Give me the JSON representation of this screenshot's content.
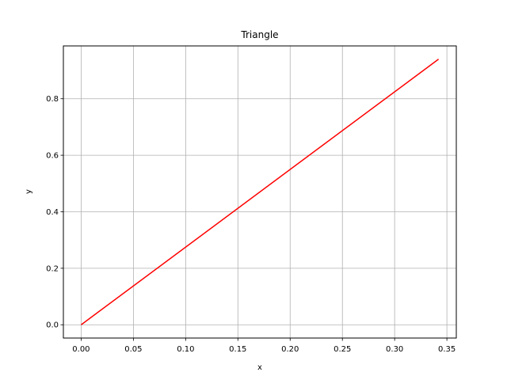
{
  "chart_data": {
    "type": "line",
    "title": "Triangle",
    "xlabel": "x",
    "ylabel": "y",
    "xlim": [
      -0.017,
      0.359
    ],
    "ylim": [
      -0.047,
      0.987
    ],
    "grid": true,
    "x_ticks": [
      0.0,
      0.05,
      0.1,
      0.15,
      0.2,
      0.25,
      0.3,
      0.35
    ],
    "x_tick_labels": [
      "0.00",
      "0.05",
      "0.10",
      "0.15",
      "0.20",
      "0.25",
      "0.30",
      "0.35"
    ],
    "y_ticks": [
      0.0,
      0.2,
      0.4,
      0.6,
      0.8
    ],
    "y_tick_labels": [
      "0.0",
      "0.2",
      "0.4",
      "0.6",
      "0.8"
    ],
    "series": [
      {
        "color": "#ff0000",
        "x": [
          0.0,
          0.342
        ],
        "y": [
          0.0,
          0.94
        ]
      }
    ]
  }
}
